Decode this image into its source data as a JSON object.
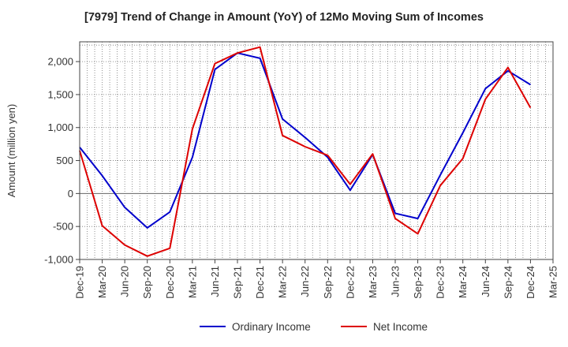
{
  "chart_data": {
    "type": "line",
    "title": "[7979]  Trend of Change in Amount (YoY) of 12Mo Moving Sum of Incomes",
    "ylabel": "Amount (million yen)",
    "xlabel": "",
    "ylim": [
      -1000,
      2300
    ],
    "yticks": [
      -1000,
      -500,
      0,
      500,
      1000,
      1500,
      2000
    ],
    "ytick_labels": [
      "-1,000",
      "-500",
      "0",
      "500",
      "1,000",
      "1,500",
      "2,000"
    ],
    "xtick_labels": [
      "Dec-19",
      "Mar-20",
      "Jun-20",
      "Sep-20",
      "Dec-20",
      "Mar-21",
      "Jun-21",
      "Sep-21",
      "Dec-21",
      "Mar-22",
      "Jun-22",
      "Sep-22",
      "Dec-22",
      "Mar-23",
      "Jun-23",
      "Sep-23",
      "Dec-23",
      "Mar-24",
      "Jun-24",
      "Sep-24",
      "Dec-24",
      "Mar-25"
    ],
    "grid": true,
    "legend_position": "bottom",
    "series": [
      {
        "name": "Ordinary Income",
        "color": "#0000cc",
        "values": [
          700,
          270,
          -210,
          -520,
          -280,
          550,
          1880,
          2130,
          2050,
          1130,
          850,
          550,
          50,
          590,
          -300,
          -380,
          280,
          920,
          1590,
          1860,
          1650
        ]
      },
      {
        "name": "Net Income",
        "color": "#dd0000",
        "values": [
          650,
          -490,
          -780,
          -950,
          -830,
          980,
          1970,
          2130,
          2220,
          880,
          710,
          580,
          140,
          600,
          -380,
          -610,
          120,
          530,
          1430,
          1910,
          1300
        ]
      }
    ]
  }
}
